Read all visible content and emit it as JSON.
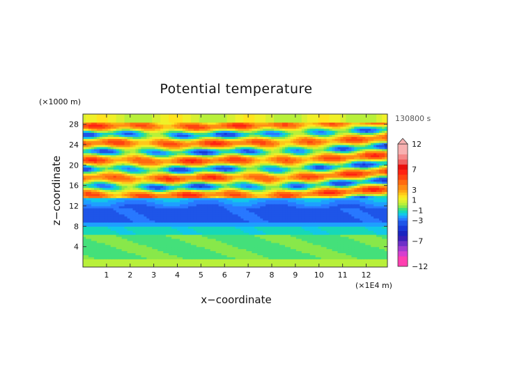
{
  "chart_data": {
    "type": "heatmap",
    "title": "Potential temperature",
    "time_label": "130800 s",
    "xlabel": "x−coordinate",
    "ylabel": "z−coordinate",
    "x_unit": "(×1E4 m)",
    "y_unit": "(×1000 m)",
    "xlim": [
      0,
      12.9
    ],
    "ylim": [
      0,
      30
    ],
    "x_ticks": [
      1,
      2,
      3,
      4,
      5,
      6,
      7,
      8,
      9,
      10,
      11,
      12
    ],
    "y_ticks": [
      4,
      8,
      12,
      16,
      20,
      24,
      28
    ],
    "colorbar": {
      "tick_labels": [
        "12",
        "7",
        "3",
        "1",
        "−1",
        "−3",
        "−7",
        "−12"
      ],
      "tick_values": [
        12,
        7,
        3,
        1,
        -1,
        -3,
        -7,
        -12
      ],
      "levels": [
        -12,
        -10,
        -9,
        -8,
        -7,
        -6,
        -5,
        -4,
        -3,
        -2.5,
        -2,
        -1.5,
        -1,
        -0.5,
        0,
        0.5,
        1,
        1.5,
        2,
        2.5,
        3,
        4,
        5,
        6,
        7,
        8,
        9,
        10,
        12
      ],
      "colors": [
        "#ff3fb0",
        "#d63fcf",
        "#a23ad0",
        "#6e2fc8",
        "#3a1fb8",
        "#1a24c0",
        "#1838d8",
        "#1e55e8",
        "#2878ff",
        "#1ea0ff",
        "#12c8e8",
        "#16d8b8",
        "#44e07a",
        "#88e84a",
        "#b8f03a",
        "#d8f030",
        "#f0f028",
        "#ffe41e",
        "#ffc81a",
        "#ffaa14",
        "#ff8c14",
        "#ff6a10",
        "#ff4410",
        "#ff2212",
        "#e8100e",
        "#f06060",
        "#f58888",
        "#f8b0b0"
      ],
      "extend_max": true
    },
    "field_bands_in_z_km": [
      {
        "z_range": [
          0,
          1.5
        ],
        "approx_value": 0.5
      },
      {
        "z_range": [
          1.5,
          6.5
        ],
        "approx_value": -0.6
      },
      {
        "z_range": [
          6.5,
          8
        ],
        "approx_value": -1.4
      },
      {
        "z_range": [
          8,
          8.7
        ],
        "approx_value": -2.4
      },
      {
        "z_range": [
          8.7,
          11.5
        ],
        "approx_value": -3.4
      },
      {
        "z_range": [
          11.5,
          13.5
        ],
        "approx_value": -2.8
      },
      {
        "z_range": [
          13.5,
          30
        ],
        "approx_value": "alternating warm/cool layers, -4 to +7"
      }
    ],
    "grid": false
  }
}
